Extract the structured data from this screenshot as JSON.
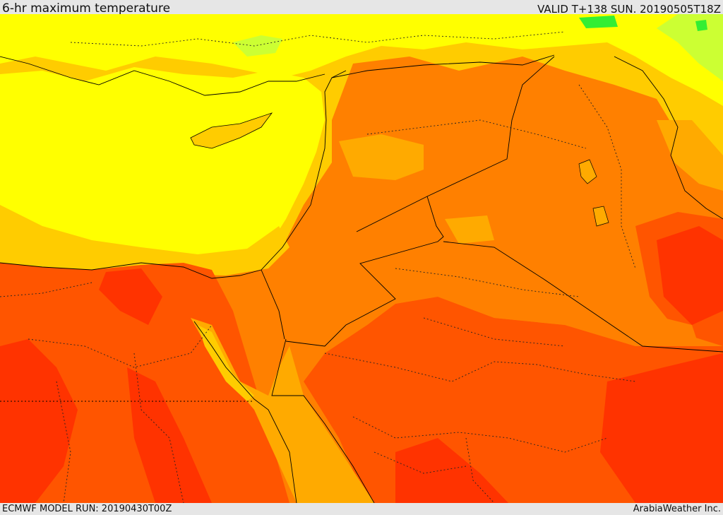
{
  "header": {
    "title": "6-hr maximum temperature",
    "valid": "VALID T+138 SUN. 20190505T18Z"
  },
  "footer": {
    "model_run": "ECMWF MODEL RUN: 20190430T00Z",
    "credit": "ArabiaWeather Inc."
  },
  "palette": {
    "hottest": "#ff3300",
    "very_hot": "#ff5500",
    "hot": "#ff8000",
    "warm_orange": "#ffaa00",
    "warm": "#ffcc00",
    "mild": "#ffff00",
    "cool": "#ccff33",
    "cooler": "#33ee33",
    "bar_background": "#e6e6e6",
    "boundary": "#000000"
  }
}
